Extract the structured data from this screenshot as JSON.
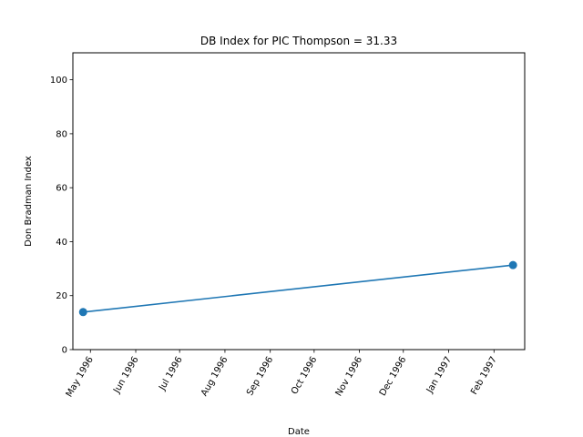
{
  "chart_data": {
    "type": "line",
    "title": "DB Index for PIC Thompson = 31.33",
    "xlabel": "Date",
    "ylabel": "Don Bradman Index",
    "ylim": [
      0,
      110
    ],
    "xlim": [
      "1996-04-19",
      "1997-02-22"
    ],
    "grid": false,
    "x_tick_labels": [
      "May 1996",
      "Jun 1996",
      "Jul 1996",
      "Aug 1996",
      "Sep 1996",
      "Oct 1996",
      "Nov 1996",
      "Dec 1996",
      "Jan 1997",
      "Feb 1997"
    ],
    "x_tick_dates": [
      "1996-05-01",
      "1996-06-01",
      "1996-07-01",
      "1996-08-01",
      "1996-09-01",
      "1996-10-01",
      "1996-11-01",
      "1996-12-01",
      "1997-01-01",
      "1997-02-01"
    ],
    "y_tick_labels": [
      "0",
      "20",
      "40",
      "60",
      "80",
      "100"
    ],
    "y_ticks": [
      0,
      20,
      40,
      60,
      80,
      100
    ],
    "series": [
      {
        "color": "#1f77b4",
        "x": [
          "1996-04-26",
          "1997-02-14"
        ],
        "y": [
          13.9,
          31.33
        ]
      }
    ]
  }
}
